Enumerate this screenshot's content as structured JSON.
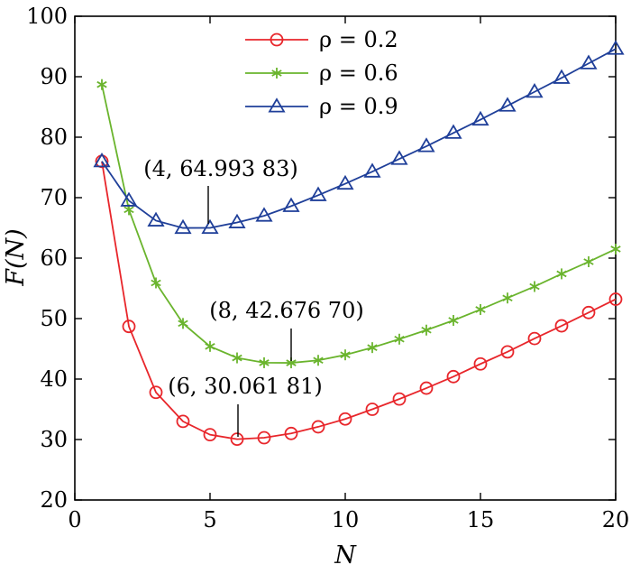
{
  "chart_data": {
    "type": "line",
    "xlabel": "N",
    "ylabel": "F(N)",
    "xlim": [
      0,
      20
    ],
    "ylim": [
      20,
      100
    ],
    "xticks": [
      0,
      5,
      10,
      15,
      20
    ],
    "yticks": [
      20,
      30,
      40,
      50,
      60,
      70,
      80,
      90,
      100
    ],
    "grid": false,
    "legend_position": "top-center",
    "x": [
      1,
      2,
      3,
      4,
      5,
      6,
      7,
      8,
      9,
      10,
      11,
      12,
      13,
      14,
      15,
      16,
      17,
      18,
      19,
      20
    ],
    "series": [
      {
        "name": "ρ = 0.2",
        "color": "#e8262b",
        "marker": "circle",
        "values": [
          76.0,
          48.7,
          37.8,
          33.0,
          30.8,
          30.06,
          30.3,
          31.0,
          32.1,
          33.4,
          35.0,
          36.7,
          38.5,
          40.4,
          42.5,
          44.5,
          46.7,
          48.8,
          51.0,
          53.2
        ]
      },
      {
        "name": "ρ = 0.6",
        "color": "#6ab42d",
        "marker": "asterisk",
        "values": [
          88.7,
          68.0,
          55.9,
          49.2,
          45.4,
          43.5,
          42.7,
          42.68,
          43.1,
          44.0,
          45.2,
          46.6,
          48.1,
          49.7,
          51.5,
          53.4,
          55.3,
          57.4,
          59.4,
          61.5
        ]
      },
      {
        "name": "ρ = 0.9",
        "color": "#1f3f99",
        "marker": "triangle",
        "values": [
          76.0,
          69.5,
          66.2,
          64.99,
          65.0,
          65.9,
          67.0,
          68.6,
          70.4,
          72.3,
          74.3,
          76.4,
          78.5,
          80.7,
          82.9,
          85.2,
          87.5,
          89.8,
          92.2,
          94.6
        ]
      }
    ],
    "annotations": [
      {
        "text": "(4, 64.993 83)",
        "x": 4,
        "y": 64.99383,
        "series": 2
      },
      {
        "text": "(8, 42.676 70)",
        "x": 8,
        "y": 42.6767,
        "series": 1
      },
      {
        "text": "(6, 30.061 81)",
        "x": 6,
        "y": 30.06181,
        "series": 0
      }
    ]
  }
}
